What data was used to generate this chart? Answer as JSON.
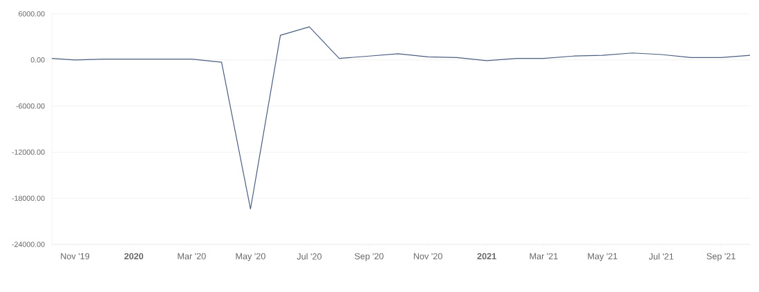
{
  "chart_data": {
    "type": "line",
    "x": [
      "2019-10-08",
      "2019-11-01",
      "2019-12-01",
      "2020-01-01",
      "2020-02-01",
      "2020-03-01",
      "2020-04-01",
      "2020-05-01",
      "2020-06-01",
      "2020-07-01",
      "2020-08-01",
      "2020-09-01",
      "2020-10-01",
      "2020-11-01",
      "2020-12-01",
      "2021-01-01",
      "2021-02-01",
      "2021-03-01",
      "2021-04-01",
      "2021-05-01",
      "2021-06-01",
      "2021-07-01",
      "2021-08-01",
      "2021-09-01",
      "2021-10-01"
    ],
    "series": [
      {
        "color": "#4a5d80",
        "values": [
          200,
          0,
          100,
          100,
          100,
          100,
          -300,
          -19400,
          3200,
          4300,
          200,
          500,
          800,
          400,
          300,
          -100,
          200,
          200,
          500,
          600,
          900,
          700,
          300,
          300,
          600
        ]
      }
    ],
    "xlim": [
      "2019-10-08",
      "2021-10-01"
    ],
    "xticks": [
      {
        "value": "2019-11-01",
        "label": "Nov '19"
      },
      {
        "value": "2020-01-01",
        "label": "**2020**"
      },
      {
        "value": "2020-03-01",
        "label": "Mar '20"
      },
      {
        "value": "2020-05-01",
        "label": "May '20"
      },
      {
        "value": "2020-07-01",
        "label": "Jul '20"
      },
      {
        "value": "2020-09-01",
        "label": "Sep '20"
      },
      {
        "value": "2020-11-01",
        "label": "Nov '20"
      },
      {
        "value": "2021-01-01",
        "label": "**2021**"
      },
      {
        "value": "2021-03-01",
        "label": "Mar '21"
      },
      {
        "value": "2021-05-01",
        "label": "May '21"
      },
      {
        "value": "2021-07-01",
        "label": "Jul '21"
      },
      {
        "value": "2021-09-01",
        "label": "Sep '21"
      }
    ],
    "ylim": [
      -24000,
      6000
    ],
    "yticks": [
      {
        "value": -24000,
        "label": "-24000.00"
      },
      {
        "value": -18000,
        "label": "-18000.00"
      },
      {
        "value": -12000,
        "label": "-12000.00"
      },
      {
        "value": -6000,
        "label": "-6000.00"
      },
      {
        "value": 0,
        "label": "0.00"
      },
      {
        "value": 6000,
        "label": "6000.00"
      }
    ],
    "grid": "y",
    "marker": "none",
    "line_style": "solid"
  }
}
